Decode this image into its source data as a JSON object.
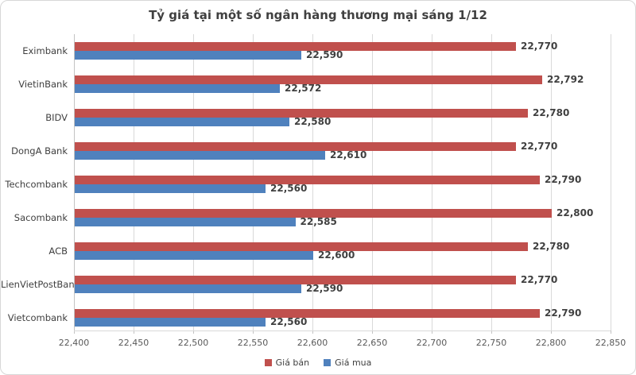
{
  "chart_data": {
    "type": "bar",
    "orientation": "horizontal",
    "title": "Tỷ giá tại một số ngân hàng thương mại sáng 1/12",
    "categories": [
      "Eximbank",
      "VietinBank",
      "BIDV",
      "DongA Bank",
      "Techcombank",
      "Sacombank",
      "ACB",
      "LienVietPostBank",
      "Vietcombank"
    ],
    "series": [
      {
        "name": "Giá bán",
        "color": "#C0504D",
        "values": [
          22770,
          22792,
          22780,
          22770,
          22790,
          22800,
          22780,
          22770,
          22790
        ]
      },
      {
        "name": "Giá mua",
        "color": "#4F81BD",
        "values": [
          22590,
          22572,
          22580,
          22610,
          22560,
          22585,
          22600,
          22590,
          22560
        ]
      }
    ],
    "xlim": [
      22400,
      22850
    ],
    "x_ticks": [
      {
        "label": "22,400",
        "value": 22400
      },
      {
        "label": "22,450",
        "value": 22450
      },
      {
        "label": "22,500",
        "value": 22500
      },
      {
        "label": "22,550",
        "value": 22550
      },
      {
        "label": "22,600",
        "value": 22600
      },
      {
        "label": "22,650",
        "value": 22650
      },
      {
        "label": "22,700",
        "value": 22700
      },
      {
        "label": "22,750",
        "value": 22750
      },
      {
        "label": "22,800",
        "value": 22800
      },
      {
        "label": "22,850",
        "value": 22850
      }
    ],
    "value_labels": [
      "22,770",
      "22,792",
      "22,780",
      "22,770",
      "22,790",
      "22,800",
      "22,780",
      "22,770",
      "22,790",
      "22,590",
      "22,572",
      "22,580",
      "22,610",
      "22,560",
      "22,585",
      "22,600",
      "22,590",
      "22,560"
    ],
    "grid": true,
    "legend_position": "bottom",
    "colors": {
      "grid": "#D9D9D9",
      "axis": "#C3C3C3",
      "title_text": "#404040",
      "tick_text": "#595959"
    }
  }
}
